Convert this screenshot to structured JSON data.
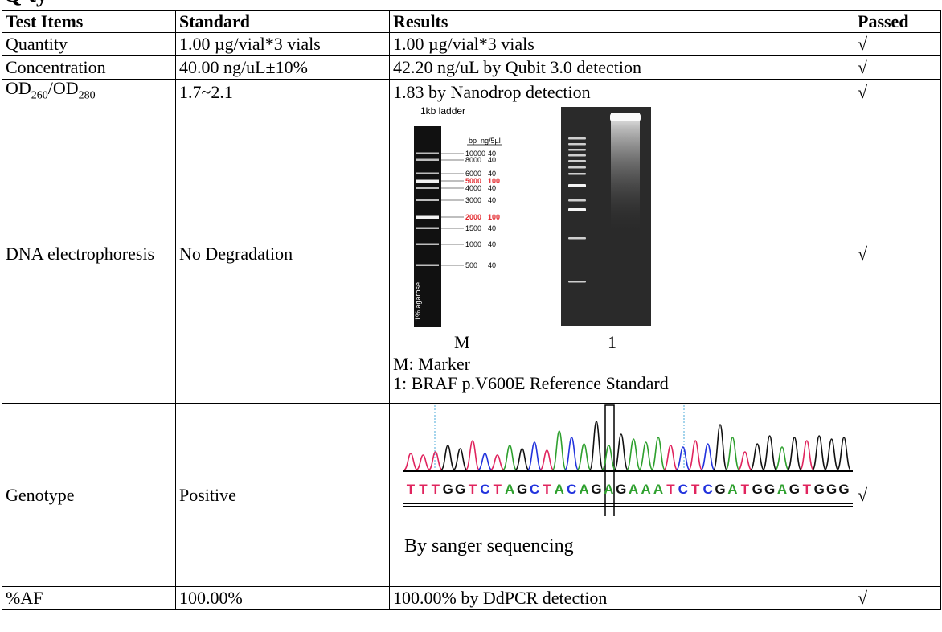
{
  "heading_partial": "Q    ty",
  "table": {
    "headers": {
      "test_items": "Test Items",
      "standard": "Standard",
      "results": "Results",
      "passed": "Passed"
    },
    "rows": [
      {
        "item": "Quantity",
        "standard": "1.00 µg/vial*3 vials",
        "result": "1.00 µg/vial*3 vials",
        "passed": "√"
      },
      {
        "item": "Concentration",
        "standard": "40.00 ng/uL±10%",
        "result": "42.20 ng/uL by Qubit 3.0 detection",
        "passed": "√"
      },
      {
        "item_parts": {
          "a": "OD",
          "a_sub": "260",
          "sep": "/OD",
          "b_sub": "280"
        },
        "standard": "1.7~2.1",
        "result": "1.83 by Nanodrop detection",
        "passed": "√"
      },
      {
        "item": "DNA electrophoresis",
        "standard": "No Degradation",
        "passed": "√"
      },
      {
        "item": "Genotype",
        "standard": "Positive",
        "passed": "√"
      },
      {
        "item": "%AF",
        "standard": "100.00%",
        "result": "100.00% by DdPCR detection",
        "passed": "√"
      }
    ]
  },
  "gel": {
    "ladder_title": "1kb ladder",
    "col_bp": "bp",
    "col_ng": "ng/5µl",
    "agarose_label": "1% agarose",
    "bands": [
      {
        "bp": "10000",
        "ng": "40",
        "highlight": false
      },
      {
        "bp": "8000",
        "ng": "40",
        "highlight": false
      },
      {
        "bp": "6000",
        "ng": "40",
        "highlight": false
      },
      {
        "bp": "5000",
        "ng": "100",
        "highlight": true
      },
      {
        "bp": "4000",
        "ng": "40",
        "highlight": false
      },
      {
        "bp": "3000",
        "ng": "40",
        "highlight": false
      },
      {
        "bp": "2000",
        "ng": "100",
        "highlight": true
      },
      {
        "bp": "1500",
        "ng": "40",
        "highlight": false
      },
      {
        "bp": "1000",
        "ng": "40",
        "highlight": false
      },
      {
        "bp": "500",
        "ng": "40",
        "highlight": false
      }
    ],
    "lane_m": "M",
    "lane_1": "1",
    "legend_m": "M: Marker",
    "legend_1": "1: BRAF p.V600E Reference Standard",
    "highlight_color": "#e3262b"
  },
  "genotype": {
    "sequence": "TTTGGTCTAGCTACAGAGAAATCTCGATGGAGTGGG",
    "caption": "By sanger sequencing",
    "base_colors": {
      "A": "#2ea02e",
      "C": "#2233dd",
      "G": "#111111",
      "T": "#e0245e"
    }
  }
}
